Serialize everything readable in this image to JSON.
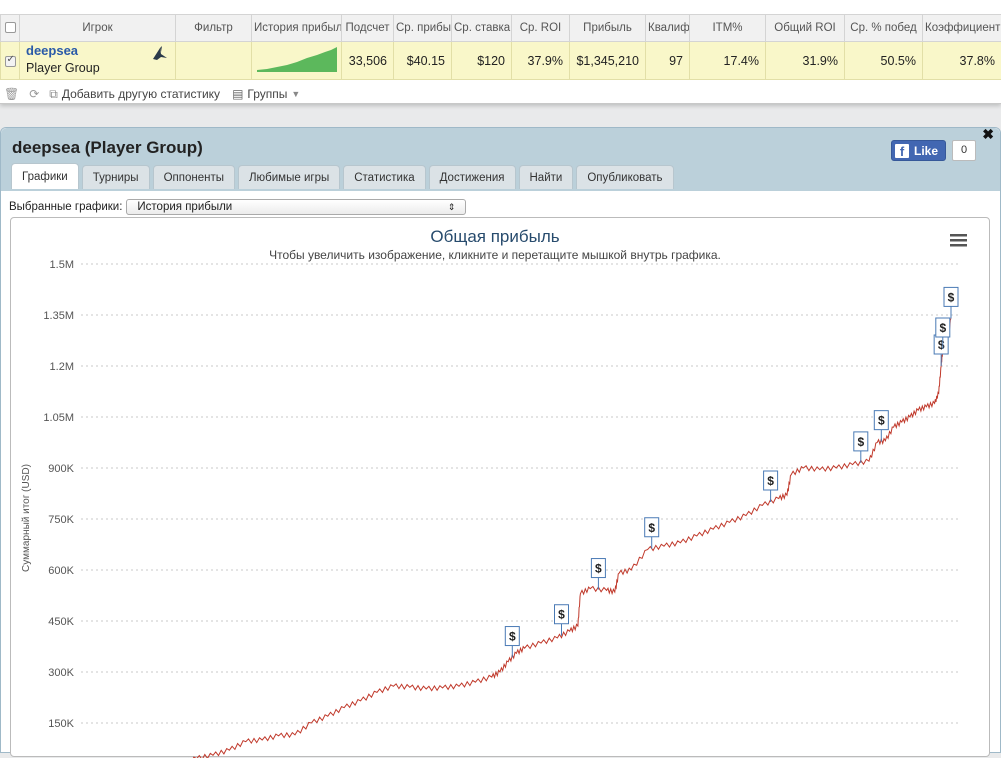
{
  "table": {
    "headers": [
      "Игрок",
      "Фильтр",
      "История прибыли",
      "Подсчет",
      "Ср. прибыль",
      "Ср. ставка",
      "Ср. ROI",
      "Прибыль",
      "Квалиф.",
      "ITM%",
      "Общий ROI",
      "Ср. % побед",
      "Коэффициент"
    ],
    "row": {
      "player_name": "deepsea",
      "player_group": "Player Group",
      "filter": "",
      "count": "33,506",
      "avg_profit": "$40.15",
      "avg_stake": "$120",
      "avg_roi": "37.9%",
      "profit": "$1,345,210",
      "qualified": "97",
      "itm": "17.4%",
      "total_roi": "31.9%",
      "avg_win_pct": "50.5%",
      "ratio": "37.8%"
    }
  },
  "toolbar": {
    "add_stat": "Добавить другую статистику",
    "groups": "Группы"
  },
  "panel": {
    "title": "deepsea (Player Group)",
    "like_label": "Like",
    "like_count": "0",
    "tabs": [
      "Графики",
      "Турниры",
      "Оппоненты",
      "Любимые игры",
      "Статистика",
      "Достижения",
      "Найти",
      "Опубликовать"
    ],
    "active_tab": 0,
    "select_label": "Выбранные графики:",
    "select_value": "История прибыли"
  },
  "chart_data": {
    "type": "line",
    "title": "Общая прибыль",
    "subtitle": "Чтобы увеличить изображение, кликните и перетащите мышкой внутрь графика.",
    "ylabel": "Суммарный итог (USD)",
    "ylim": [
      0,
      1500000
    ],
    "yticks": [
      150000,
      300000,
      450000,
      600000,
      750000,
      900000,
      1050000,
      1200000,
      1350000,
      1500000
    ],
    "ytick_labels": [
      "150K",
      "300K",
      "450K",
      "600K",
      "750K",
      "900K",
      "1.05M",
      "1.2M",
      "1.35M",
      "1.5M"
    ],
    "grid": true,
    "line_color": "#c0392b",
    "series": [
      {
        "values": [
          [
            0.0,
            0
          ],
          [
            0.02,
            10000
          ],
          [
            0.04,
            15000
          ],
          [
            0.06,
            30000
          ],
          [
            0.08,
            45000
          ],
          [
            0.1,
            55000
          ],
          [
            0.12,
            70000
          ],
          [
            0.14,
            95000
          ],
          [
            0.16,
            100000
          ],
          [
            0.18,
            112000
          ],
          [
            0.2,
            115000
          ],
          [
            0.22,
            150000
          ],
          [
            0.24,
            170000
          ],
          [
            0.26,
            195000
          ],
          [
            0.28,
            215000
          ],
          [
            0.3,
            240000
          ],
          [
            0.32,
            258000
          ],
          [
            0.34,
            255000
          ],
          [
            0.36,
            250000
          ],
          [
            0.38,
            253000
          ],
          [
            0.4,
            258000
          ],
          [
            0.42,
            270000
          ],
          [
            0.44,
            285000
          ],
          [
            0.45,
            300000
          ],
          [
            0.46,
            330000
          ],
          [
            0.47,
            355000
          ],
          [
            0.48,
            370000
          ],
          [
            0.5,
            385000
          ],
          [
            0.52,
            400000
          ],
          [
            0.535,
            420000
          ],
          [
            0.545,
            435000
          ],
          [
            0.548,
            530000
          ],
          [
            0.56,
            545000
          ],
          [
            0.58,
            540000
          ],
          [
            0.59,
            535000
          ],
          [
            0.595,
            590000
          ],
          [
            0.61,
            600000
          ],
          [
            0.63,
            660000
          ],
          [
            0.65,
            670000
          ],
          [
            0.67,
            680000
          ],
          [
            0.69,
            700000
          ],
          [
            0.71,
            720000
          ],
          [
            0.73,
            740000
          ],
          [
            0.75,
            760000
          ],
          [
            0.77,
            790000
          ],
          [
            0.79,
            810000
          ],
          [
            0.8,
            820000
          ],
          [
            0.805,
            880000
          ],
          [
            0.82,
            900000
          ],
          [
            0.84,
            895000
          ],
          [
            0.86,
            900000
          ],
          [
            0.88,
            910000
          ],
          [
            0.9,
            920000
          ],
          [
            0.91,
            975000
          ],
          [
            0.92,
            980000
          ],
          [
            0.93,
            1020000
          ],
          [
            0.94,
            1035000
          ],
          [
            0.95,
            1050000
          ],
          [
            0.96,
            1070000
          ],
          [
            0.97,
            1080000
          ],
          [
            0.98,
            1090000
          ],
          [
            0.985,
            1120000
          ],
          [
            0.988,
            1200000
          ],
          [
            0.99,
            1250000
          ],
          [
            0.995,
            1270000
          ],
          [
            1.0,
            1340000
          ]
        ]
      }
    ],
    "markers_label": "$",
    "marker_x": [
      0.465,
      0.525,
      0.57,
      0.635,
      0.78,
      0.89,
      0.915,
      0.988,
      0.99,
      1.0
    ]
  }
}
